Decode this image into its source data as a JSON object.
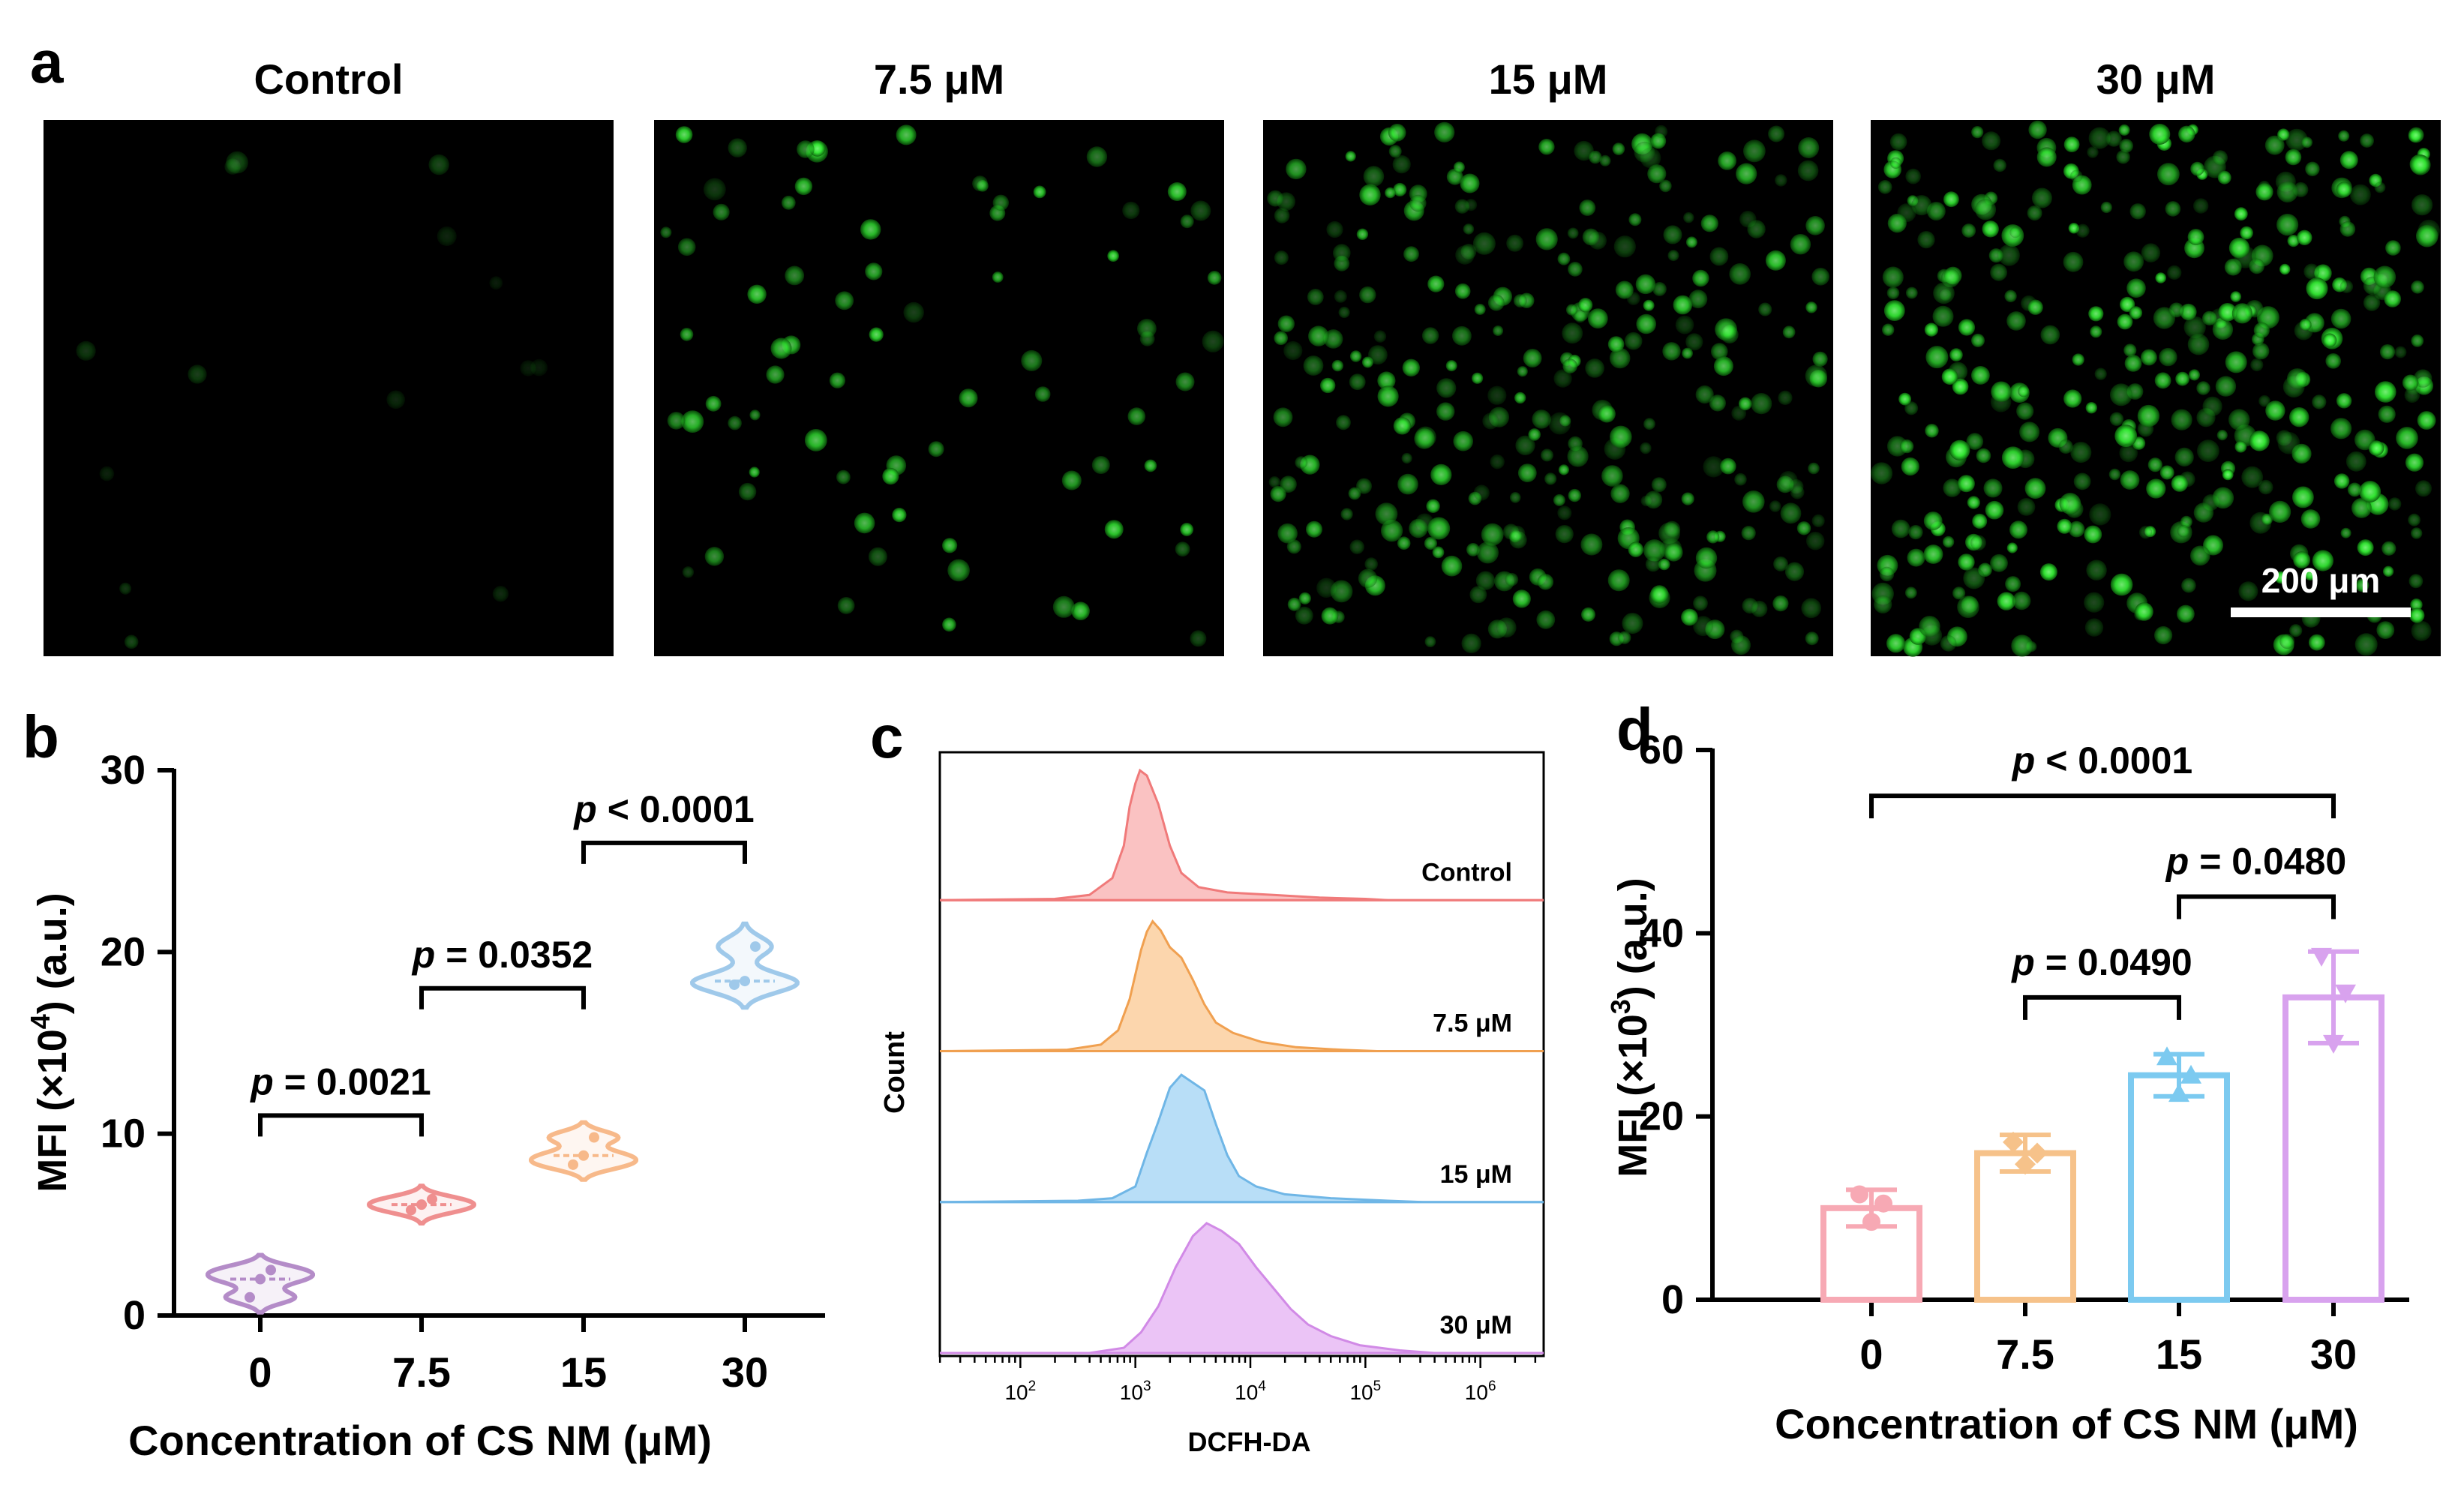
{
  "panel_a": {
    "letter": "a",
    "images": [
      {
        "title": "Control",
        "cells": 14,
        "brightness": 0.28
      },
      {
        "title": "7.5 μM",
        "cells": 75,
        "brightness": 0.85
      },
      {
        "title": "15 μM",
        "cells": 300,
        "brightness": 0.8
      },
      {
        "title": "30 μM",
        "cells": 380,
        "brightness": 0.95
      }
    ],
    "scale_bar": "200 μm",
    "accent_color": "#33ee33"
  },
  "chart_data": [
    {
      "panel": "b",
      "type": "violin",
      "categories": [
        "0",
        "7.5",
        "15",
        "30"
      ],
      "series": [
        {
          "category": "0",
          "values": [
            1.0,
            2.0,
            2.5
          ],
          "color": "#b48cc8"
        },
        {
          "category": "7.5",
          "values": [
            5.8,
            6.1,
            6.4
          ],
          "color": "#ef8f8f"
        },
        {
          "category": "15",
          "values": [
            8.3,
            8.8,
            9.8
          ],
          "color": "#f7b98a"
        },
        {
          "category": "30",
          "values": [
            18.2,
            18.4,
            20.3
          ],
          "color": "#9fc9ea"
        }
      ],
      "ylabel_main": "MFI (×10",
      "ylabel_exp": "4",
      "ylabel_tail": ") (a.u.)",
      "xlabel": "Concentration of CS NM (μM)",
      "ylim": [
        0,
        30
      ],
      "yticks": [
        0,
        10,
        20,
        30
      ],
      "annotations": [
        {
          "from": "0",
          "to": "7.5",
          "y": 11,
          "p": "p",
          "text": " = 0.0021"
        },
        {
          "from": "7.5",
          "to": "15",
          "y": 18,
          "p": "p",
          "text": " = 0.0352"
        },
        {
          "from": "15",
          "to": "30",
          "y": 26,
          "p": "p",
          "text": " < 0.0001"
        }
      ]
    },
    {
      "panel": "c",
      "type": "histogram",
      "xlabel": "DCFH-DA",
      "ylabel": "Count",
      "xscale": "log",
      "xlim_log10": [
        1.3,
        6.55
      ],
      "xticks": [
        {
          "base": "10",
          "exp": "2"
        },
        {
          "base": "10",
          "exp": "3"
        },
        {
          "base": "10",
          "exp": "4"
        },
        {
          "base": "10",
          "exp": "5"
        },
        {
          "base": "10",
          "exp": "6"
        }
      ],
      "series": [
        {
          "name": "Control",
          "peak_log10": 3.05,
          "color": "#f07a7a",
          "fill": "#f9b7b7",
          "shape": [
            [
              2.3,
              0.01
            ],
            [
              2.6,
              0.04
            ],
            [
              2.8,
              0.17
            ],
            [
              2.9,
              0.42
            ],
            [
              2.95,
              0.72
            ],
            [
              3.0,
              0.9
            ],
            [
              3.04,
              1.0
            ],
            [
              3.1,
              0.96
            ],
            [
              3.2,
              0.74
            ],
            [
              3.3,
              0.42
            ],
            [
              3.4,
              0.21
            ],
            [
              3.55,
              0.1
            ],
            [
              3.8,
              0.06
            ],
            [
              4.2,
              0.04
            ],
            [
              4.6,
              0.02
            ],
            [
              5.0,
              0.01
            ],
            [
              5.2,
              0.0
            ]
          ]
        },
        {
          "name": "7.5 μM",
          "peak_log10": 3.15,
          "color": "#f0a050",
          "fill": "#fbcf9f",
          "shape": [
            [
              2.4,
              0.01
            ],
            [
              2.7,
              0.05
            ],
            [
              2.85,
              0.16
            ],
            [
              2.95,
              0.4
            ],
            [
              3.05,
              0.78
            ],
            [
              3.1,
              0.92
            ],
            [
              3.15,
              1.0
            ],
            [
              3.22,
              0.93
            ],
            [
              3.3,
              0.8
            ],
            [
              3.4,
              0.72
            ],
            [
              3.5,
              0.55
            ],
            [
              3.6,
              0.36
            ],
            [
              3.7,
              0.22
            ],
            [
              3.85,
              0.14
            ],
            [
              4.1,
              0.07
            ],
            [
              4.4,
              0.03
            ],
            [
              4.8,
              0.01
            ],
            [
              5.1,
              0.0
            ]
          ]
        },
        {
          "name": "15 μM",
          "peak_log10": 3.4,
          "color": "#6fb6e6",
          "fill": "#acd8f6",
          "shape": [
            [
              2.5,
              0.01
            ],
            [
              2.8,
              0.03
            ],
            [
              3.0,
              0.12
            ],
            [
              3.1,
              0.38
            ],
            [
              3.2,
              0.62
            ],
            [
              3.3,
              0.88
            ],
            [
              3.4,
              0.98
            ],
            [
              3.5,
              0.92
            ],
            [
              3.6,
              0.86
            ],
            [
              3.7,
              0.6
            ],
            [
              3.8,
              0.36
            ],
            [
              3.9,
              0.2
            ],
            [
              4.05,
              0.12
            ],
            [
              4.3,
              0.06
            ],
            [
              4.7,
              0.03
            ],
            [
              5.2,
              0.01
            ],
            [
              5.5,
              0.0
            ]
          ]
        },
        {
          "name": "30 μM",
          "peak_log10": 3.6,
          "color": "#d18ae6",
          "fill": "#e7baf5",
          "shape": [
            [
              2.6,
              0.0
            ],
            [
              2.9,
              0.04
            ],
            [
              3.05,
              0.16
            ],
            [
              3.2,
              0.36
            ],
            [
              3.35,
              0.66
            ],
            [
              3.5,
              0.9
            ],
            [
              3.62,
              1.0
            ],
            [
              3.75,
              0.94
            ],
            [
              3.9,
              0.84
            ],
            [
              4.05,
              0.66
            ],
            [
              4.2,
              0.5
            ],
            [
              4.35,
              0.34
            ],
            [
              4.5,
              0.22
            ],
            [
              4.7,
              0.13
            ],
            [
              4.95,
              0.06
            ],
            [
              5.3,
              0.02
            ],
            [
              5.6,
              0.0
            ]
          ]
        }
      ]
    },
    {
      "panel": "d",
      "type": "bar",
      "categories": [
        "0",
        "7.5",
        "15",
        "30"
      ],
      "values": [
        10,
        16,
        24.5,
        33
      ],
      "errors": [
        2,
        2,
        2.3,
        5
      ],
      "points": [
        [
          11.5,
          8.5,
          10.5
        ],
        [
          17.2,
          14.8,
          16.0
        ],
        [
          26.5,
          22.5,
          24.5
        ],
        [
          37.5,
          28.0,
          33.5
        ]
      ],
      "markers": [
        "circle",
        "diamond",
        "triangle",
        "triangle-down"
      ],
      "colors": [
        "#f7a9b4",
        "#f6c28a",
        "#7ccaf0",
        "#d8a2ee"
      ],
      "ylabel_main": "MFI (×10",
      "ylabel_exp": "3",
      "ylabel_tail": ") (a.u.)",
      "xlabel": "Concentration of CS NM (μM)",
      "ylim": [
        0,
        60
      ],
      "yticks": [
        0,
        20,
        40,
        60
      ],
      "annotations": [
        {
          "from": "0",
          "to": "30",
          "y": 55,
          "p": "p",
          "text": " < 0.0001"
        },
        {
          "from": "7.5",
          "to": "15",
          "y": 33,
          "p": "p",
          "text": " = 0.0490"
        },
        {
          "from": "15",
          "to": "30",
          "y": 44,
          "p": "p",
          "text": " = 0.0480"
        }
      ]
    }
  ]
}
